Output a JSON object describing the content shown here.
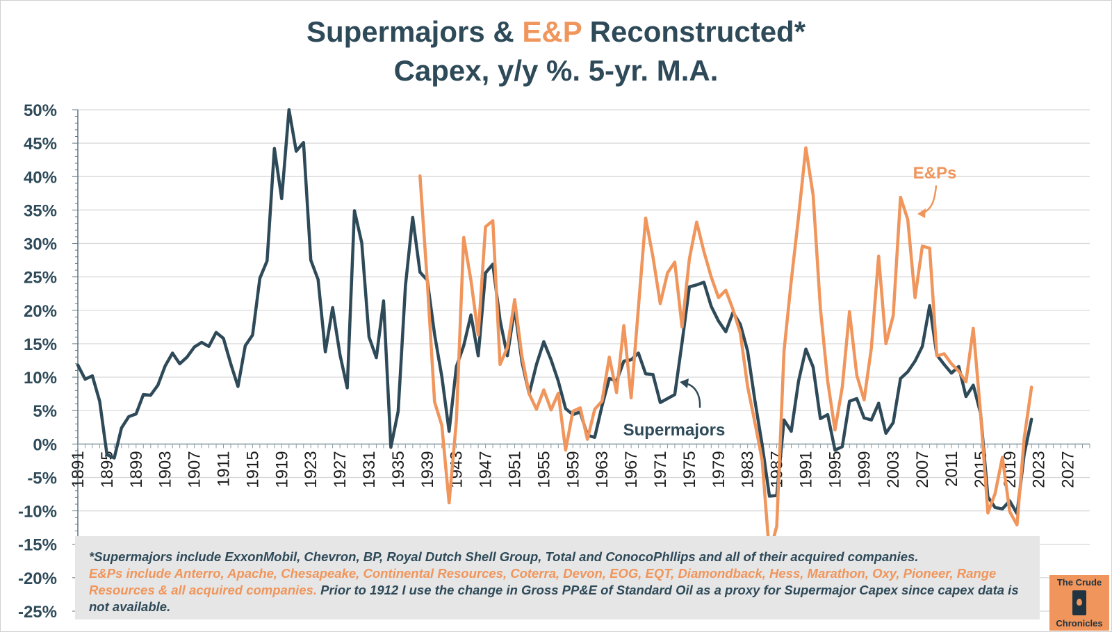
{
  "title": {
    "line1_part1": "Supermajors & ",
    "line1_part2": "E&P",
    "line1_part3": " Reconstructed*",
    "line2": "Capex, y/y %. 5-yr. M.A."
  },
  "colors": {
    "supermajors": "#2e4a59",
    "eps": "#f0955b",
    "grid": "#d6d6d6"
  },
  "chart_data": {
    "type": "line",
    "title": "Supermajors & E&P Reconstructed* Capex, y/y %. 5-yr. M.A.",
    "xlabel": "",
    "ylabel": "",
    "xlim": [
      1891,
      2030
    ],
    "ylim": [
      -25,
      50
    ],
    "y_ticks": [
      50,
      45,
      40,
      35,
      30,
      25,
      20,
      15,
      10,
      5,
      0,
      -5,
      -10,
      -15,
      -20,
      -25
    ],
    "y_tick_labels": [
      "50%",
      "45%",
      "40%",
      "35%",
      "30%",
      "25%",
      "20%",
      "15%",
      "10%",
      "5%",
      "0%",
      "-5%",
      "-10%",
      "-15%",
      "-20%",
      "-25%"
    ],
    "x_ticks": [
      1891,
      1895,
      1899,
      1903,
      1907,
      1911,
      1915,
      1919,
      1923,
      1927,
      1931,
      1935,
      1939,
      1943,
      1947,
      1951,
      1955,
      1959,
      1963,
      1967,
      1971,
      1975,
      1979,
      1983,
      1987,
      1991,
      1995,
      1999,
      2003,
      2007,
      2011,
      2015,
      2019,
      2023,
      2027
    ],
    "x_tick_labels": [
      "1891",
      "1895",
      "1899",
      "1903",
      "1907",
      "1911",
      "1915",
      "1919",
      "1923",
      "1927",
      "1931",
      "1935",
      "1939",
      "1943",
      "1947",
      "1951",
      "1955",
      "1959",
      "1963",
      "1967",
      "1971",
      "1975",
      "1979",
      "1983",
      "1987",
      "1991",
      "1995",
      "1999",
      "2003",
      "2007",
      "2011",
      "2015",
      "2019",
      "2023",
      "2027"
    ],
    "grid": true,
    "series": [
      {
        "name": "Supermajors",
        "x": [
          1891,
          1892,
          1893,
          1894,
          1895,
          1896,
          1897,
          1898,
          1899,
          1900,
          1901,
          1902,
          1903,
          1904,
          1905,
          1906,
          1907,
          1908,
          1909,
          1910,
          1911,
          1912,
          1913,
          1914,
          1915,
          1916,
          1917,
          1918,
          1919,
          1920,
          1921,
          1922,
          1923,
          1924,
          1925,
          1926,
          1927,
          1928,
          1929,
          1930,
          1931,
          1932,
          1933,
          1934,
          1935,
          1936,
          1937,
          1938,
          1939,
          1940,
          1941,
          1942,
          1943,
          1944,
          1945,
          1946,
          1947,
          1948,
          1949,
          1950,
          1951,
          1952,
          1953,
          1954,
          1955,
          1956,
          1957,
          1958,
          1959,
          1960,
          1961,
          1962,
          1963,
          1964,
          1965,
          1966,
          1967,
          1968,
          1969,
          1970,
          1971,
          1972,
          1973,
          1974,
          1975,
          1976,
          1977,
          1978,
          1979,
          1980,
          1981,
          1982,
          1983,
          1984,
          1985,
          1986,
          1987,
          1988,
          1989,
          1990,
          1991,
          1992,
          1993,
          1994,
          1995,
          1996,
          1997,
          1998,
          1999,
          2000,
          2001,
          2002,
          2003,
          2004,
          2005,
          2006,
          2007,
          2008,
          2009,
          2010,
          2011,
          2012,
          2013,
          2014,
          2015,
          2016,
          2017,
          2018,
          2019,
          2020,
          2021,
          2022
        ],
        "values": [
          11.8,
          9.7,
          10.2,
          6.4,
          -1.6,
          -2.1,
          2.4,
          4.1,
          4.5,
          7.4,
          7.3,
          8.8,
          11.7,
          13.6,
          12.0,
          13.0,
          14.5,
          15.2,
          14.6,
          16.7,
          15.8,
          12.0,
          8.6,
          14.7,
          16.3,
          24.8,
          27.4,
          44.2,
          36.7,
          50.0,
          43.8,
          45.1,
          27.5,
          24.6,
          13.8,
          20.4,
          13.4,
          8.4,
          34.9,
          30.1,
          16.0,
          12.9,
          21.4,
          -0.5,
          4.9,
          23.7,
          33.9,
          25.7,
          24.5,
          16.4,
          10.1,
          1.9,
          11.6,
          14.7,
          19.3,
          13.2,
          25.6,
          26.9,
          18.5,
          13.2,
          20.3,
          12.3,
          7.5,
          11.9,
          15.3,
          12.6,
          9.4,
          5.3,
          4.4,
          4.8,
          1.3,
          1.0,
          5.7,
          9.8,
          9.4,
          12.4,
          12.6,
          13.6,
          10.5,
          10.4,
          6.2,
          6.8,
          7.4,
          15.2,
          23.5,
          23.8,
          24.2,
          20.6,
          18.4,
          16.8,
          19.7,
          17.9,
          13.9,
          6.5,
          -0.1,
          -7.8,
          -7.7,
          3.6,
          1.9,
          9.4,
          14.2,
          11.5,
          3.8,
          4.4,
          -0.9,
          -0.4,
          6.4,
          6.8,
          3.9,
          3.6,
          6.1,
          1.6,
          3.2,
          9.8,
          10.8,
          12.4,
          14.6,
          20.7,
          13.3,
          11.9,
          10.6,
          11.6,
          7.1,
          8.8,
          4.6,
          -7.9,
          -9.5,
          -9.7,
          -8.5,
          -10.4,
          -1.5,
          3.7
        ]
      },
      {
        "name": "E&Ps",
        "x": [
          1938,
          1939,
          1940,
          1941,
          1942,
          1943,
          1944,
          1945,
          1946,
          1947,
          1948,
          1949,
          1950,
          1951,
          1952,
          1953,
          1954,
          1955,
          1956,
          1957,
          1958,
          1959,
          1960,
          1961,
          1962,
          1963,
          1964,
          1965,
          1966,
          1967,
          1968,
          1969,
          1970,
          1971,
          1972,
          1973,
          1974,
          1975,
          1976,
          1977,
          1978,
          1979,
          1980,
          1981,
          1982,
          1983,
          1984,
          1985,
          1986,
          1987,
          1988,
          1989,
          1990,
          1991,
          1992,
          1993,
          1994,
          1995,
          1996,
          1997,
          1998,
          1999,
          2000,
          2001,
          2002,
          2003,
          2004,
          2005,
          2006,
          2007,
          2008,
          2009,
          2010,
          2011,
          2012,
          2013,
          2014,
          2015,
          2016,
          2017,
          2018,
          2019,
          2020,
          2021,
          2022
        ],
        "values": [
          40.1,
          24.3,
          6.3,
          2.8,
          -8.8,
          3.5,
          30.9,
          24.5,
          16.3,
          32.5,
          33.4,
          11.9,
          14.4,
          21.6,
          13.1,
          7.5,
          5.2,
          8.1,
          5.1,
          7.6,
          -0.9,
          4.9,
          5.4,
          0.7,
          5.2,
          6.4,
          13.0,
          7.7,
          17.7,
          6.9,
          20.4,
          33.8,
          28.0,
          21.0,
          25.6,
          27.2,
          17.5,
          27.7,
          33.2,
          28.8,
          25.0,
          21.9,
          23.0,
          20.1,
          16.6,
          8.6,
          3.2,
          -2.4,
          -16.4,
          -12.3,
          13.9,
          24.4,
          34.0,
          44.3,
          37.2,
          20.3,
          9.4,
          2.1,
          8.5,
          19.8,
          10.3,
          6.6,
          14.4,
          28.1,
          15.0,
          19.2,
          36.9,
          33.6,
          21.9,
          29.6,
          29.3,
          13.2,
          13.5,
          12.0,
          10.9,
          9.3,
          17.3,
          4.6,
          -10.3,
          -7.4,
          -2.0,
          -10.1,
          -12.1,
          0.9,
          8.5
        ]
      }
    ],
    "annotations": [
      {
        "text": "E&Ps",
        "color": "#f0955b"
      },
      {
        "text": "Supermajors",
        "color": "#2e4a59"
      }
    ]
  },
  "footnote": {
    "part1": "*Supermajors include ExxonMobil, Chevron, BP, Royal Dutch Shell Group, Total and ConocoPhllips and all of their acquired companies.",
    "part2": "E&Ps include Anterro, Apache, Chesapeake, Continental Resources, Coterra, Devon, EOG, EQT, Diamondback, Hess, Marathon, Oxy, Pioneer,  Range Resources & all acquired companies.",
    "part3": " Prior to 1912 I use the change in Gross PP&E of Standard Oil as a proxy for Supermajor Capex since capex data is not available."
  },
  "logo": {
    "line1": "The Crude",
    "line2": "Chronicles",
    "icon": "oil-barrel-icon"
  }
}
